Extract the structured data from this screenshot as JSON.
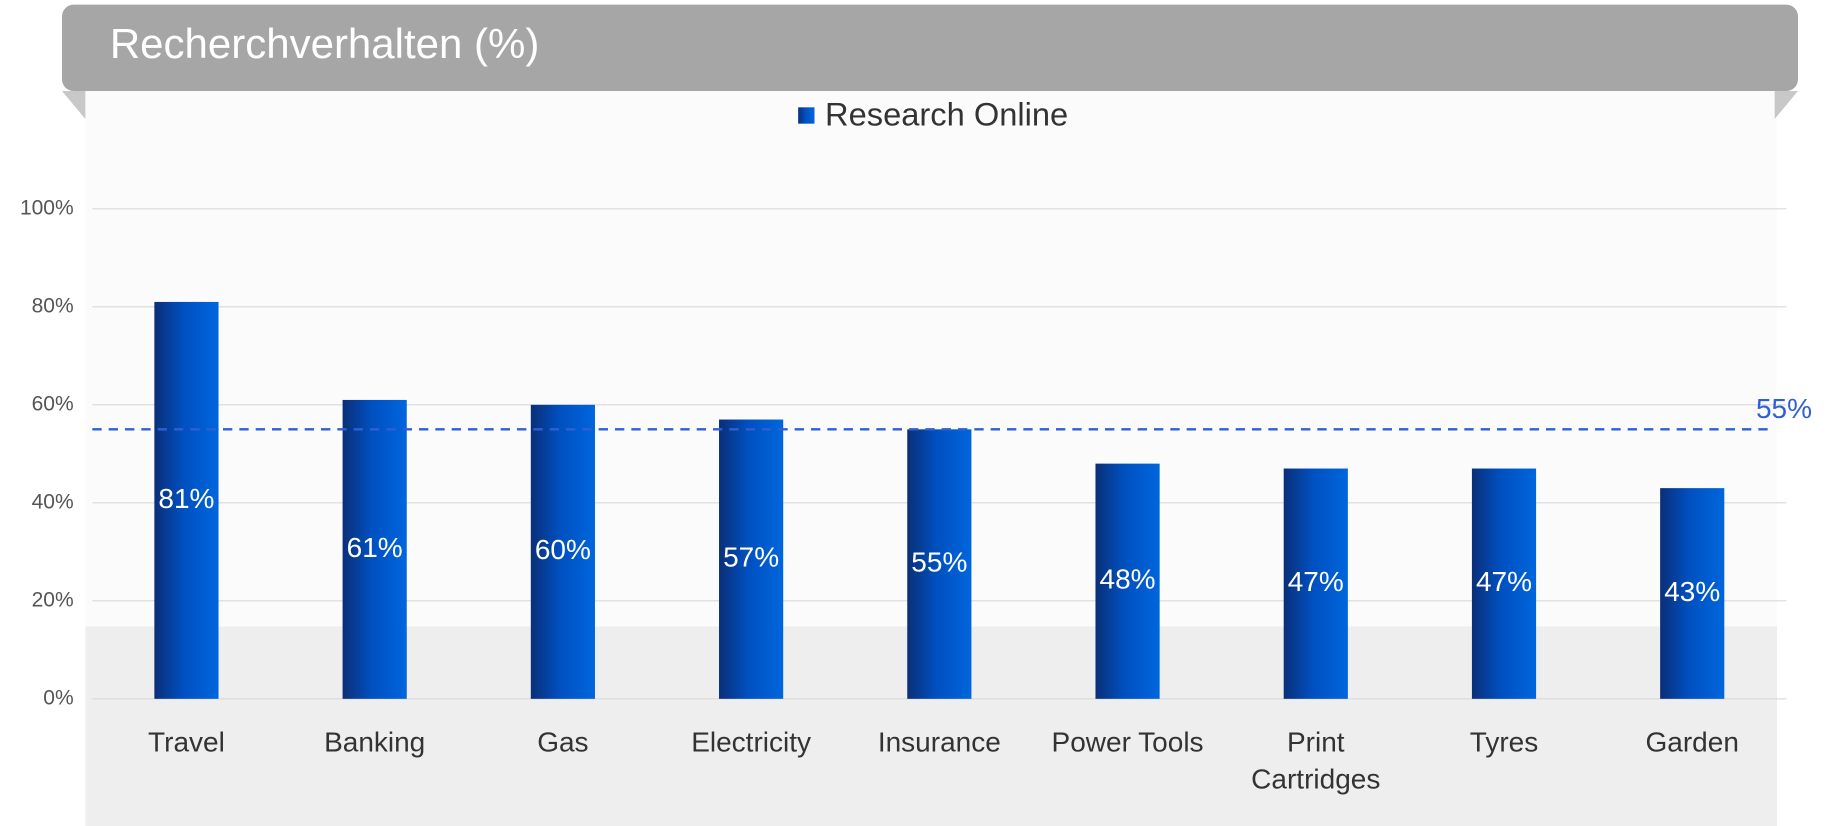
{
  "chart_data": {
    "type": "bar",
    "title": "Recherchverhalten (%)",
    "legend": "Research Online",
    "categories": [
      "Travel",
      "Banking",
      "Gas",
      "Electricity",
      "Insurance",
      "Power Tools",
      "Print Cartridges",
      "Tyres",
      "Garden"
    ],
    "series": [
      {
        "name": "Research Online",
        "color": "#0055cc",
        "values": [
          81,
          61,
          60,
          57,
          55,
          48,
          47,
          47,
          43
        ],
        "value_labels": [
          "81%",
          "61%",
          "60%",
          "57%",
          "55%",
          "48%",
          "47%",
          "47%",
          "43%"
        ]
      }
    ],
    "ylim": [
      0,
      100
    ],
    "yticks": [
      {
        "value": 0,
        "label": "0%"
      },
      {
        "value": 20,
        "label": "20%"
      },
      {
        "value": 40,
        "label": "40%"
      },
      {
        "value": 60,
        "label": "60%"
      },
      {
        "value": 80,
        "label": "80%"
      },
      {
        "value": 100,
        "label": "100%"
      }
    ],
    "grid": true,
    "reference_line": {
      "value": 55,
      "label": "55%",
      "color": "#2e5fd4"
    }
  }
}
